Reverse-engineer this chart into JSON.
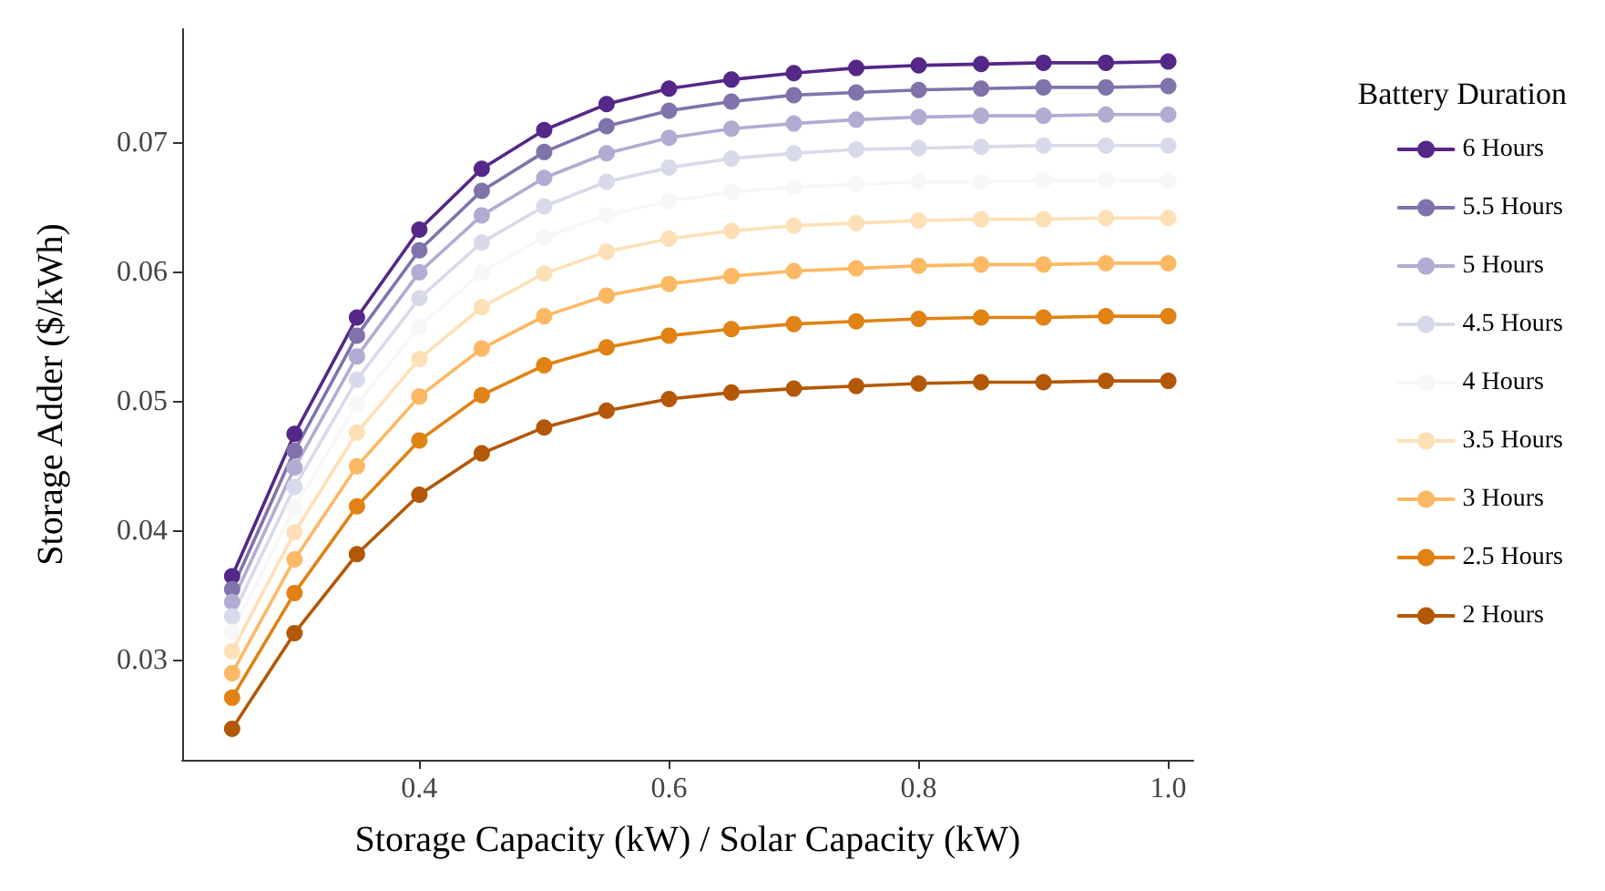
{
  "chart_data": {
    "type": "line",
    "xlabel": "Storage Capacity (kW) / Solar Capacity (kW)",
    "ylabel": "Storage Adder ($/kWh)",
    "legend_title": "Battery Duration",
    "legend": "right",
    "grid": false,
    "marker": "circle",
    "line_style": "solid",
    "x": [
      0.25,
      0.3,
      0.35,
      0.4,
      0.45,
      0.5,
      0.55,
      0.6,
      0.65,
      0.7,
      0.75,
      0.8,
      0.85,
      0.9,
      0.95,
      1.0
    ],
    "xlim": [
      0.21,
      1.02
    ],
    "xticks": [
      0.4,
      0.6,
      0.8,
      {
        "value": 1.0,
        "label": "1.0"
      }
    ],
    "ylim": [
      0.0223,
      0.0788
    ],
    "yticks": [
      0.03,
      0.04,
      0.05,
      0.06,
      0.07
    ],
    "series": [
      {
        "name": "6 Hours",
        "color": "#542788",
        "values": [
          0.0365,
          0.0475,
          0.0565,
          0.0633,
          0.068,
          0.071,
          0.073,
          0.0742,
          0.0749,
          0.0754,
          0.0758,
          0.076,
          0.0761,
          0.0762,
          0.0762,
          0.0763
        ]
      },
      {
        "name": "5.5 Hours",
        "color": "#8073ac",
        "values": [
          0.0355,
          0.0462,
          0.0551,
          0.0617,
          0.0663,
          0.0693,
          0.0713,
          0.0725,
          0.0732,
          0.0737,
          0.0739,
          0.0741,
          0.0742,
          0.0743,
          0.0743,
          0.0744
        ]
      },
      {
        "name": "5 Hours",
        "color": "#b2abd2",
        "values": [
          0.0345,
          0.0449,
          0.0535,
          0.06,
          0.0644,
          0.0673,
          0.0692,
          0.0704,
          0.0711,
          0.0715,
          0.0718,
          0.072,
          0.0721,
          0.0721,
          0.0722,
          0.0722
        ]
      },
      {
        "name": "4.5 Hours",
        "color": "#d8daeb",
        "values": [
          0.0334,
          0.0434,
          0.0517,
          0.058,
          0.0623,
          0.0651,
          0.067,
          0.0681,
          0.0688,
          0.0692,
          0.0695,
          0.0696,
          0.0697,
          0.0698,
          0.0698,
          0.0698
        ]
      },
      {
        "name": "4 Hours",
        "color": "#f7f7f7",
        "values": [
          0.0322,
          0.0418,
          0.0498,
          0.0558,
          0.06,
          0.0627,
          0.0644,
          0.0655,
          0.0662,
          0.0666,
          0.0668,
          0.067,
          0.067,
          0.0671,
          0.0671,
          0.0671
        ]
      },
      {
        "name": "3.5 Hours",
        "color": "#fee0b6",
        "values": [
          0.0307,
          0.0399,
          0.0476,
          0.0533,
          0.0573,
          0.0599,
          0.0616,
          0.0626,
          0.0632,
          0.0636,
          0.0638,
          0.064,
          0.0641,
          0.0641,
          0.0642,
          0.0642
        ]
      },
      {
        "name": "3 Hours",
        "color": "#fdb863",
        "values": [
          0.029,
          0.0378,
          0.045,
          0.0504,
          0.0541,
          0.0566,
          0.0582,
          0.0591,
          0.0597,
          0.0601,
          0.0603,
          0.0605,
          0.0606,
          0.0606,
          0.0607,
          0.0607
        ]
      },
      {
        "name": "2.5 Hours",
        "color": "#e08214",
        "values": [
          0.0271,
          0.0352,
          0.0419,
          0.047,
          0.0505,
          0.0528,
          0.0542,
          0.0551,
          0.0556,
          0.056,
          0.0562,
          0.0564,
          0.0565,
          0.0565,
          0.0566,
          0.0566
        ]
      },
      {
        "name": "2 Hours",
        "color": "#b35806",
        "values": [
          0.0247,
          0.0321,
          0.0382,
          0.0428,
          0.046,
          0.048,
          0.0493,
          0.0502,
          0.0507,
          0.051,
          0.0512,
          0.0514,
          0.0515,
          0.0515,
          0.0516,
          0.0516
        ]
      }
    ]
  }
}
